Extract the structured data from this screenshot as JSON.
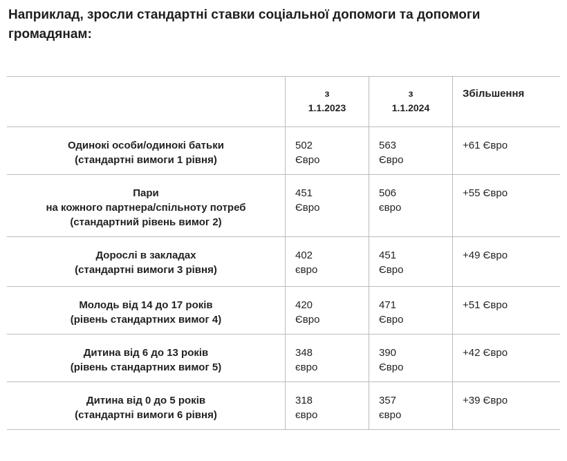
{
  "heading": "Наприклад, зросли стандартні ставки соціальної допомоги та допомоги громадянам:",
  "table": {
    "headers": [
      "",
      "з\n1.1.2023",
      "з\n1.1.2024",
      "Збільшення"
    ],
    "header_parts": {
      "col1_prefix": "з",
      "col1_date": "1.1.2023",
      "col2_prefix": "з",
      "col2_date": "1.1.2024",
      "col3": "Збільшення"
    },
    "rows": [
      {
        "label": [
          "Одинокі особи/одинокі батьки",
          "(стандартні вимоги 1 рівня)"
        ],
        "v2023": [
          "502",
          "Євро"
        ],
        "v2024": [
          "563",
          "Євро"
        ],
        "increase": "+61 Євро"
      },
      {
        "label": [
          "Пари",
          "на кожного партнера/спільноту потреб",
          "(стандартний рівень вимог 2)"
        ],
        "v2023": [
          "451",
          "Євро"
        ],
        "v2024": [
          "506",
          "євро"
        ],
        "increase": "+55 Євро"
      },
      {
        "label": [
          "Дорослі в закладах",
          "(стандартні вимоги 3 рівня)"
        ],
        "v2023": [
          "402",
          "євро"
        ],
        "v2024": [
          "451",
          "Євро"
        ],
        "increase": "+49 Євро"
      },
      {
        "label": [
          "Молодь від 14 до 17 років",
          "(рівень стандартних вимог 4)"
        ],
        "v2023": [
          "420",
          "Євро"
        ],
        "v2024": [
          "471",
          "Євро"
        ],
        "increase": "+51 Євро"
      },
      {
        "label": [
          "Дитина від 6 до 13 років",
          "(рівень стандартних вимог 5)"
        ],
        "v2023": [
          "348",
          "євро"
        ],
        "v2024": [
          "390",
          "Євро"
        ],
        "increase": "+42 Євро"
      },
      {
        "label": [
          "Дитина від 0 до 5 років",
          "(стандартні вимоги 6 рівня)"
        ],
        "v2023": [
          "318",
          "євро"
        ],
        "v2024": [
          "357",
          "євро"
        ],
        "increase": "+39 Євро"
      }
    ]
  }
}
